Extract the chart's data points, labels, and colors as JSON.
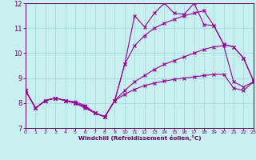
{
  "bg_color": "#c8f0f0",
  "line_color": "#990099",
  "grid_color": "#aadddd",
  "xlabel": "Windchill (Refroidissement éolien,°C)",
  "xlabel_color": "#660066",
  "tick_color": "#660066",
  "xlim": [
    0,
    23
  ],
  "ylim": [
    7,
    12
  ],
  "yticks": [
    7,
    8,
    9,
    10,
    11,
    12
  ],
  "xticks": [
    0,
    1,
    2,
    3,
    4,
    5,
    6,
    7,
    8,
    9,
    10,
    11,
    12,
    13,
    14,
    15,
    16,
    17,
    18,
    19,
    20,
    21,
    22,
    23
  ],
  "series": [
    {
      "x": [
        0,
        1,
        2,
        3,
        4,
        5,
        6,
        7,
        8,
        9,
        10,
        11,
        12,
        13,
        14,
        15,
        16,
        17,
        18,
        19,
        20,
        21,
        22,
        23
      ],
      "y": [
        8.5,
        7.8,
        8.1,
        8.2,
        8.1,
        8.0,
        7.8,
        7.6,
        7.45,
        8.1,
        9.55,
        11.5,
        11.05,
        11.6,
        12.0,
        11.6,
        11.55,
        12.0,
        11.15,
        11.1,
        10.35,
        10.25,
        9.8,
        8.9
      ]
    },
    {
      "x": [
        0,
        1,
        2,
        3,
        4,
        5,
        6,
        7,
        8,
        9,
        10,
        11,
        12,
        13,
        14,
        15,
        16,
        17,
        18,
        19,
        20,
        21,
        22,
        23
      ],
      "y": [
        8.5,
        7.8,
        8.1,
        8.2,
        8.1,
        8.0,
        7.85,
        7.6,
        7.45,
        8.1,
        9.55,
        10.3,
        10.7,
        11.0,
        11.2,
        11.35,
        11.5,
        11.6,
        11.7,
        11.1,
        10.35,
        10.25,
        9.8,
        8.9
      ]
    },
    {
      "x": [
        0,
        1,
        2,
        3,
        4,
        5,
        6,
        7,
        8,
        9,
        10,
        11,
        12,
        13,
        14,
        15,
        16,
        17,
        18,
        19,
        20,
        21,
        22,
        23
      ],
      "y": [
        8.5,
        7.8,
        8.1,
        8.2,
        8.1,
        8.0,
        7.85,
        7.6,
        7.45,
        8.1,
        8.5,
        8.85,
        9.1,
        9.35,
        9.55,
        9.7,
        9.85,
        10.0,
        10.15,
        10.25,
        10.3,
        8.85,
        8.65,
        8.85
      ]
    },
    {
      "x": [
        0,
        1,
        2,
        3,
        4,
        5,
        6,
        7,
        8,
        9,
        10,
        11,
        12,
        13,
        14,
        15,
        16,
        17,
        18,
        19,
        20,
        21,
        22,
        23
      ],
      "y": [
        8.5,
        7.8,
        8.1,
        8.2,
        8.1,
        8.05,
        7.9,
        7.6,
        7.45,
        8.1,
        8.35,
        8.55,
        8.7,
        8.8,
        8.88,
        8.95,
        9.0,
        9.05,
        9.1,
        9.15,
        9.15,
        8.6,
        8.5,
        8.85
      ]
    }
  ]
}
